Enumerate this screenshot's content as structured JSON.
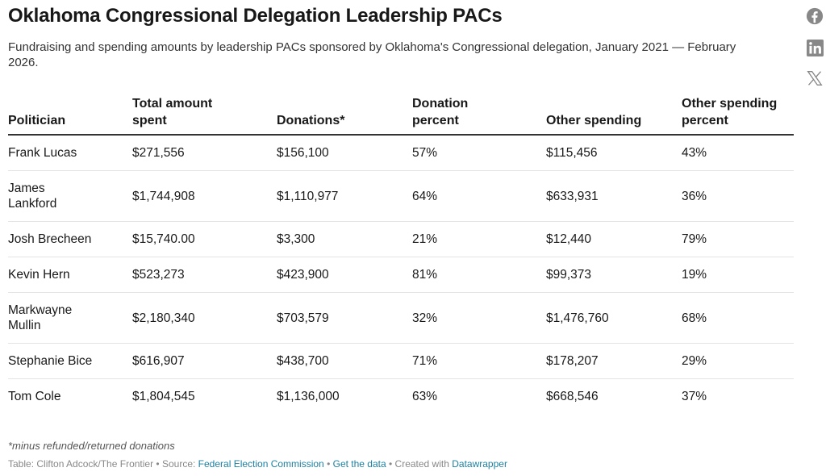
{
  "title": "Oklahoma Congressional Delegation Leadership PACs",
  "subtitle": "Fundraising and spending amounts by leadership PACs sponsored by Oklahoma's Congressional delegation, January 2021 — February 2026.",
  "social": [
    "facebook-icon",
    "linkedin-icon",
    "x-icon"
  ],
  "headers": [
    "Politician",
    "Total amount spent",
    "Donations*",
    "Donation percent",
    "Other spending",
    "Other spending percent"
  ],
  "rows": [
    [
      "Frank Lucas",
      "$271,556",
      "$156,100",
      "57%",
      "$115,456",
      "43%"
    ],
    [
      "James Lankford",
      "$1,744,908",
      "$1,110,977",
      "64%",
      "$633,931",
      "36%"
    ],
    [
      "Josh Brecheen",
      "$15,740.00",
      "$3,300",
      "21%",
      "$12,440",
      "79%"
    ],
    [
      "Kevin Hern",
      "$523,273",
      "$423,900",
      "81%",
      "$99,373",
      "19%"
    ],
    [
      "Markwayne Mullin",
      "$2,180,340",
      "$703,579",
      "32%",
      "$1,476,760",
      "68%"
    ],
    [
      "Stephanie Bice",
      "$616,907",
      "$438,700",
      "71%",
      "$178,207",
      "29%"
    ],
    [
      "Tom Cole",
      "$1,804,545",
      "$1,136,000",
      "63%",
      "$668,546",
      "37%"
    ]
  ],
  "note": "*minus refunded/returned donations",
  "footer": {
    "table": "Table: Clifton Adcock/The Frontier",
    "sep": " • ",
    "source_label": "Source: ",
    "source": "Federal Election Commission",
    "get_data": "Get the data",
    "created": "Created with ",
    "tool": "Datawrapper"
  },
  "colors": {
    "link": "#1d81a2",
    "icon": "#888888"
  }
}
